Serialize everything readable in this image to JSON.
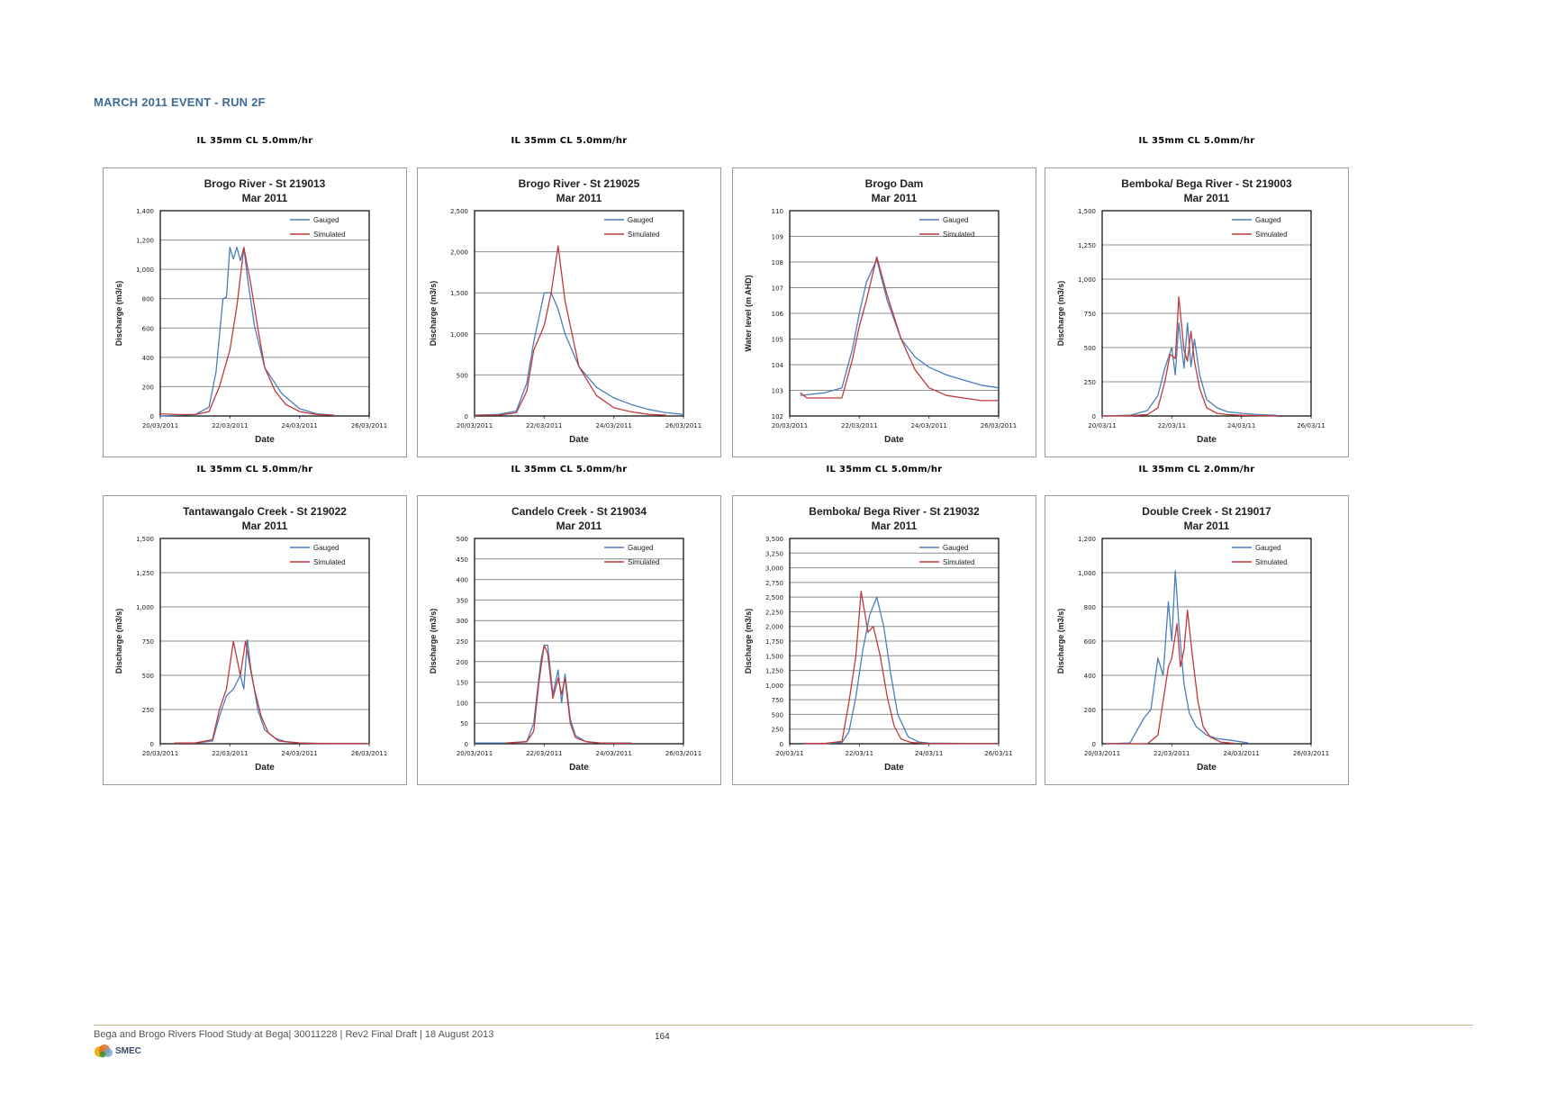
{
  "page": {
    "heading": "MARCH 2011 EVENT - RUN 2F",
    "footer_text": "Bega and Brogo Rivers Flood Study at Bega| 30011228 | Rev2 Final Draft | 18 August 2013",
    "page_number": "164",
    "logo_text": "SMEC",
    "logo_colors": [
      "#f2b21c",
      "#e36b1f",
      "#6aa5d6",
      "#3a8f3a"
    ]
  },
  "colors": {
    "gauged": "#4a7ebb",
    "simulated": "#c0393b"
  },
  "params": [
    "IL 35mm CL 5.0mm/hr",
    "IL 35mm CL 5.0mm/hr",
    "",
    "IL 35mm CL 5.0mm/hr",
    "IL 35mm CL 5.0mm/hr",
    "IL 35mm CL 5.0mm/hr",
    "IL 35mm CL 5.0mm/hr",
    "IL 35mm CL 2.0mm/hr"
  ],
  "chart_data": [
    {
      "type": "line",
      "title": "Brogo River - St 219013",
      "subtitle": "Mar 2011",
      "xlabel": "Date",
      "ylabel": "Discharge (m3/s)",
      "xticks": [
        "20/03/2011",
        "22/03/2011",
        "24/03/2011",
        "26/03/2011"
      ],
      "xlim": [
        20,
        26
      ],
      "ylim": [
        0,
        1400
      ],
      "yticks": [
        "0",
        "200",
        "400",
        "600",
        "800",
        "1,000",
        "1,200",
        "1,400"
      ],
      "legend": "top-right",
      "series": [
        {
          "name": "Gauged",
          "x": [
            20,
            20.5,
            21,
            21.4,
            21.6,
            21.8,
            21.9,
            22,
            22.1,
            22.2,
            22.3,
            22.4,
            22.5,
            22.7,
            23,
            23.5,
            24,
            24.5,
            25
          ],
          "y": [
            0,
            5,
            10,
            60,
            300,
            800,
            810,
            1150,
            1070,
            1150,
            1060,
            1150,
            950,
            620,
            330,
            150,
            50,
            15,
            5
          ]
        },
        {
          "name": "Simulated",
          "x": [
            20,
            20.5,
            21,
            21.4,
            21.7,
            22,
            22.2,
            22.4,
            22.6,
            22.8,
            23,
            23.3,
            23.6,
            24,
            24.5,
            25
          ],
          "y": [
            15,
            10,
            10,
            30,
            200,
            450,
            750,
            1150,
            900,
            600,
            330,
            170,
            80,
            30,
            10,
            5
          ]
        }
      ]
    },
    {
      "type": "line",
      "title": "Brogo River - St 219025",
      "subtitle": "Mar 2011",
      "xlabel": "Date",
      "ylabel": "Discharge (m3/s)",
      "xticks": [
        "20/03/2011",
        "22/03/2011",
        "24/03/2011",
        "26/03/2011"
      ],
      "xlim": [
        20,
        26
      ],
      "ylim": [
        0,
        2500
      ],
      "yticks": [
        "0",
        "500",
        "1,000",
        "1,500",
        "2,000",
        "2,500"
      ],
      "legend": "top-right",
      "series": [
        {
          "name": "Gauged",
          "x": [
            20,
            20.7,
            21.2,
            21.5,
            21.7,
            21.9,
            22,
            22.2,
            22.4,
            22.6,
            23,
            23.5,
            24,
            24.5,
            25,
            25.5,
            26
          ],
          "y": [
            10,
            20,
            60,
            400,
            900,
            1300,
            1500,
            1500,
            1300,
            1000,
            600,
            350,
            220,
            140,
            80,
            40,
            20
          ]
        },
        {
          "name": "Simulated",
          "x": [
            20,
            20.7,
            21.2,
            21.5,
            21.7,
            21.9,
            22,
            22.2,
            22.4,
            22.6,
            23,
            23.5,
            24,
            24.5,
            25,
            25.5
          ],
          "y": [
            10,
            10,
            40,
            300,
            800,
            1000,
            1100,
            1500,
            2070,
            1400,
            600,
            250,
            100,
            50,
            20,
            10
          ]
        }
      ]
    },
    {
      "type": "line",
      "title": "Brogo Dam",
      "subtitle": "Mar 2011",
      "xlabel": "Date",
      "ylabel": "Water level (m AHD)",
      "xticks": [
        "20/03/2011",
        "22/03/2011",
        "24/03/2011",
        "26/03/2011"
      ],
      "xlim": [
        20,
        26
      ],
      "ylim": [
        102,
        110
      ],
      "yticks": [
        "102",
        "103",
        "104",
        "105",
        "106",
        "107",
        "108",
        "109",
        "110"
      ],
      "legend": "top-right",
      "series": [
        {
          "name": "Gauged",
          "x": [
            20.3,
            21,
            21.5,
            21.8,
            22,
            22.2,
            22.5,
            22.8,
            23.2,
            23.6,
            24,
            24.5,
            25,
            25.5,
            26
          ],
          "y": [
            102.8,
            102.9,
            103.1,
            104.6,
            106,
            107.2,
            108.1,
            106.5,
            105,
            104.3,
            103.9,
            103.6,
            103.4,
            103.2,
            103.1
          ]
        },
        {
          "name": "Simulated",
          "x": [
            20.3,
            20.5,
            21.5,
            21.8,
            22,
            22.2,
            22.5,
            22.8,
            23.2,
            23.6,
            24,
            24.5,
            25,
            25.5,
            26
          ],
          "y": [
            102.9,
            102.7,
            102.7,
            104.2,
            105.5,
            106.5,
            108.2,
            106.7,
            105,
            103.8,
            103.1,
            102.8,
            102.7,
            102.6,
            102.6
          ]
        }
      ]
    },
    {
      "type": "line",
      "title": "Bemboka/ Bega River - St 219003",
      "subtitle": "Mar 2011",
      "xlabel": "Date",
      "ylabel": "Discharge (m3/s)",
      "xticks": [
        "20/03/11",
        "22/03/11",
        "24/03/11",
        "26/03/11"
      ],
      "xlim": [
        20,
        26
      ],
      "ylim": [
        0,
        1500
      ],
      "yticks": [
        "0",
        "250",
        "500",
        "750",
        "1,000",
        "1,250",
        "1,500"
      ],
      "legend": "top-right",
      "series": [
        {
          "name": "Gauged",
          "x": [
            20,
            20.8,
            21.3,
            21.6,
            21.8,
            22,
            22.1,
            22.2,
            22.35,
            22.45,
            22.55,
            22.65,
            22.8,
            23,
            23.3,
            23.6,
            24,
            24.5,
            25
          ],
          "y": [
            0,
            5,
            40,
            150,
            350,
            500,
            300,
            680,
            350,
            680,
            360,
            560,
            300,
            120,
            60,
            30,
            20,
            10,
            5
          ]
        },
        {
          "name": "Simulated",
          "x": [
            20,
            20.8,
            21.3,
            21.6,
            21.8,
            21.95,
            22.1,
            22.2,
            22.35,
            22.45,
            22.55,
            22.65,
            22.8,
            23,
            23.3,
            23.6,
            24,
            24.5,
            25
          ],
          "y": [
            0,
            2,
            10,
            60,
            250,
            450,
            420,
            870,
            480,
            400,
            620,
            400,
            200,
            60,
            20,
            10,
            5,
            2,
            1
          ]
        }
      ]
    },
    {
      "type": "line",
      "title": "Tantawangalo  Creek - St 219022",
      "subtitle": "Mar 2011",
      "xlabel": "Date",
      "ylabel": "Discharge (m3/s)",
      "xticks": [
        "20/03/2011",
        "22/03/2011",
        "24/03/2011",
        "26/03/2011"
      ],
      "xlim": [
        20,
        26
      ],
      "ylim": [
        0,
        1500
      ],
      "yticks": [
        "0",
        "250",
        "500",
        "750",
        "1,000",
        "1,250",
        "1,500"
      ],
      "legend": "top-right",
      "series": [
        {
          "name": "Gauged",
          "x": [
            20.4,
            21,
            21.5,
            21.7,
            21.9,
            22.1,
            22.3,
            22.4,
            22.5,
            22.6,
            22.8,
            23,
            23.3,
            23.6,
            24,
            24.5,
            25,
            26
          ],
          "y": [
            5,
            5,
            20,
            200,
            350,
            400,
            500,
            400,
            760,
            550,
            250,
            100,
            40,
            15,
            5,
            3,
            2,
            2
          ]
        },
        {
          "name": "Simulated",
          "x": [
            20.4,
            21,
            21.5,
            21.7,
            21.9,
            22.1,
            22.3,
            22.45,
            22.55,
            22.7,
            22.9,
            23.1,
            23.4,
            24,
            24.5,
            25,
            26
          ],
          "y": [
            5,
            5,
            30,
            250,
            400,
            750,
            500,
            750,
            600,
            400,
            200,
            80,
            20,
            5,
            2,
            1,
            1
          ]
        }
      ]
    },
    {
      "type": "line",
      "title": "Candelo Creek - St 219034",
      "subtitle": "Mar 2011",
      "xlabel": "Date",
      "ylabel": "Discharge (m3/s)",
      "xticks": [
        "20/03/2011",
        "22/03/2011",
        "24/03/2011",
        "26/03/2011"
      ],
      "xlim": [
        20,
        26
      ],
      "ylim": [
        0,
        500
      ],
      "yticks": [
        "0",
        "50",
        "100",
        "150",
        "200",
        "250",
        "300",
        "350",
        "400",
        "450",
        "500"
      ],
      "legend": "top-right",
      "series": [
        {
          "name": "Gauged",
          "x": [
            20,
            21,
            21.5,
            21.7,
            21.9,
            22,
            22.1,
            22.25,
            22.4,
            22.5,
            22.6,
            22.75,
            22.9,
            23.2,
            23.6,
            24,
            24.5
          ],
          "y": [
            2,
            2,
            5,
            50,
            200,
            240,
            240,
            120,
            180,
            100,
            170,
            60,
            20,
            5,
            2,
            2,
            2
          ]
        },
        {
          "name": "Simulated",
          "x": [
            20.9,
            21.5,
            21.7,
            21.85,
            22,
            22.1,
            22.25,
            22.4,
            22.5,
            22.6,
            22.75,
            22.9,
            23.2,
            23.6,
            24,
            24.5
          ],
          "y": [
            2,
            5,
            30,
            150,
            240,
            220,
            110,
            160,
            120,
            160,
            50,
            15,
            5,
            2,
            1,
            1
          ]
        }
      ]
    },
    {
      "type": "line",
      "title": "Bemboka/ Bega River - St 219032",
      "subtitle": "Mar 2011",
      "xlabel": "Date",
      "ylabel": "Discharge (m3/s)",
      "xticks": [
        "20/03/11",
        "22/03/11",
        "24/03/11",
        "26/03/11"
      ],
      "xlim": [
        20,
        26
      ],
      "ylim": [
        0,
        3500
      ],
      "yticks": [
        "0",
        "250",
        "500",
        "750",
        "1,000",
        "1,250",
        "1,500",
        "1,750",
        "2,000",
        "2,250",
        "2,500",
        "2,750",
        "3,000",
        "3,250",
        "3,500"
      ],
      "legend": "top-right",
      "series": [
        {
          "name": "Gauged",
          "x": [
            20.4,
            21,
            21.5,
            21.7,
            21.9,
            22.1,
            22.3,
            22.5,
            22.7,
            22.9,
            23.1,
            23.4,
            23.7,
            24,
            25,
            26
          ],
          "y": [
            5,
            5,
            20,
            200,
            800,
            1600,
            2200,
            2500,
            2000,
            1200,
            500,
            120,
            30,
            10,
            5,
            5
          ]
        },
        {
          "name": "Simulated",
          "x": [
            20.4,
            21,
            21.5,
            21.7,
            21.9,
            22.05,
            22.25,
            22.4,
            22.6,
            22.8,
            23,
            23.2,
            23.5,
            24,
            25,
            26
          ],
          "y": [
            5,
            5,
            40,
            700,
            1500,
            2600,
            1900,
            2000,
            1500,
            800,
            300,
            80,
            20,
            5,
            2,
            2
          ]
        }
      ]
    },
    {
      "type": "line",
      "title": "Double Creek - St 219017",
      "subtitle": "Mar 2011",
      "xlabel": "Date",
      "ylabel": "Discharge (m3/s)",
      "xticks": [
        "20/03/2011",
        "22/03/2011",
        "24/03/2011",
        "26/03/2011"
      ],
      "xlim": [
        20,
        26
      ],
      "ylim": [
        0,
        1200
      ],
      "yticks": [
        "0",
        "200",
        "400",
        "600",
        "800",
        "1,000",
        "1,200"
      ],
      "legend": "top-right",
      "series": [
        {
          "name": "Gauged",
          "x": [
            20.1,
            20.8,
            21.2,
            21.4,
            21.6,
            21.75,
            21.9,
            22,
            22.1,
            22.2,
            22.35,
            22.5,
            22.7,
            23,
            23.3,
            23.7,
            24.2
          ],
          "y": [
            0,
            5,
            150,
            200,
            500,
            400,
            830,
            600,
            1010,
            700,
            350,
            180,
            100,
            50,
            30,
            20,
            5
          ]
        },
        {
          "name": "Simulated",
          "x": [
            20.1,
            21.3,
            21.6,
            21.9,
            22,
            22.15,
            22.25,
            22.35,
            22.45,
            22.6,
            22.75,
            22.9,
            23.1,
            23.4,
            23.8
          ],
          "y": [
            0,
            0,
            50,
            450,
            500,
            700,
            450,
            550,
            780,
            500,
            250,
            100,
            40,
            10,
            2
          ]
        }
      ]
    }
  ]
}
